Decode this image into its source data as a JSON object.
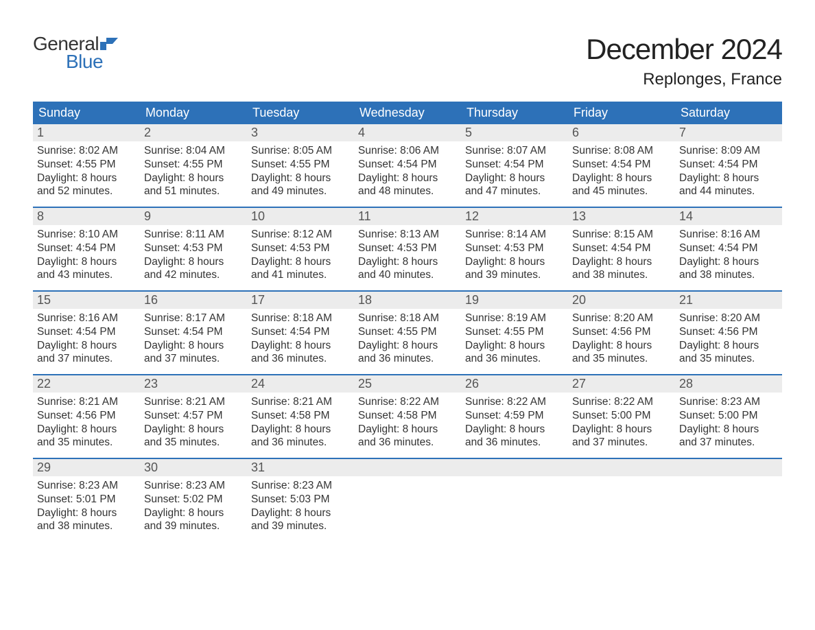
{
  "logo": {
    "general": "General",
    "blue": "Blue",
    "flag_color": "#2d71b8"
  },
  "title": "December 2024",
  "location": "Replonges, France",
  "colors": {
    "header_bg": "#2d71b8",
    "header_text": "#ffffff",
    "daynum_bg": "#ececec",
    "daynum_text": "#555555",
    "body_text": "#333333",
    "week_divider": "#2d71b8",
    "page_bg": "#ffffff"
  },
  "fonts": {
    "title_size": 42,
    "location_size": 24,
    "dayheader_size": 18,
    "daynum_size": 18,
    "body_size": 15.5
  },
  "day_headers": [
    "Sunday",
    "Monday",
    "Tuesday",
    "Wednesday",
    "Thursday",
    "Friday",
    "Saturday"
  ],
  "weeks": [
    [
      {
        "n": "1",
        "sunrise": "8:02 AM",
        "sunset": "4:55 PM",
        "dl1": "8 hours",
        "dl2": "and 52 minutes."
      },
      {
        "n": "2",
        "sunrise": "8:04 AM",
        "sunset": "4:55 PM",
        "dl1": "8 hours",
        "dl2": "and 51 minutes."
      },
      {
        "n": "3",
        "sunrise": "8:05 AM",
        "sunset": "4:55 PM",
        "dl1": "8 hours",
        "dl2": "and 49 minutes."
      },
      {
        "n": "4",
        "sunrise": "8:06 AM",
        "sunset": "4:54 PM",
        "dl1": "8 hours",
        "dl2": "and 48 minutes."
      },
      {
        "n": "5",
        "sunrise": "8:07 AM",
        "sunset": "4:54 PM",
        "dl1": "8 hours",
        "dl2": "and 47 minutes."
      },
      {
        "n": "6",
        "sunrise": "8:08 AM",
        "sunset": "4:54 PM",
        "dl1": "8 hours",
        "dl2": "and 45 minutes."
      },
      {
        "n": "7",
        "sunrise": "8:09 AM",
        "sunset": "4:54 PM",
        "dl1": "8 hours",
        "dl2": "and 44 minutes."
      }
    ],
    [
      {
        "n": "8",
        "sunrise": "8:10 AM",
        "sunset": "4:54 PM",
        "dl1": "8 hours",
        "dl2": "and 43 minutes."
      },
      {
        "n": "9",
        "sunrise": "8:11 AM",
        "sunset": "4:53 PM",
        "dl1": "8 hours",
        "dl2": "and 42 minutes."
      },
      {
        "n": "10",
        "sunrise": "8:12 AM",
        "sunset": "4:53 PM",
        "dl1": "8 hours",
        "dl2": "and 41 minutes."
      },
      {
        "n": "11",
        "sunrise": "8:13 AM",
        "sunset": "4:53 PM",
        "dl1": "8 hours",
        "dl2": "and 40 minutes."
      },
      {
        "n": "12",
        "sunrise": "8:14 AM",
        "sunset": "4:53 PM",
        "dl1": "8 hours",
        "dl2": "and 39 minutes."
      },
      {
        "n": "13",
        "sunrise": "8:15 AM",
        "sunset": "4:54 PM",
        "dl1": "8 hours",
        "dl2": "and 38 minutes."
      },
      {
        "n": "14",
        "sunrise": "8:16 AM",
        "sunset": "4:54 PM",
        "dl1": "8 hours",
        "dl2": "and 38 minutes."
      }
    ],
    [
      {
        "n": "15",
        "sunrise": "8:16 AM",
        "sunset": "4:54 PM",
        "dl1": "8 hours",
        "dl2": "and 37 minutes."
      },
      {
        "n": "16",
        "sunrise": "8:17 AM",
        "sunset": "4:54 PM",
        "dl1": "8 hours",
        "dl2": "and 37 minutes."
      },
      {
        "n": "17",
        "sunrise": "8:18 AM",
        "sunset": "4:54 PM",
        "dl1": "8 hours",
        "dl2": "and 36 minutes."
      },
      {
        "n": "18",
        "sunrise": "8:18 AM",
        "sunset": "4:55 PM",
        "dl1": "8 hours",
        "dl2": "and 36 minutes."
      },
      {
        "n": "19",
        "sunrise": "8:19 AM",
        "sunset": "4:55 PM",
        "dl1": "8 hours",
        "dl2": "and 36 minutes."
      },
      {
        "n": "20",
        "sunrise": "8:20 AM",
        "sunset": "4:56 PM",
        "dl1": "8 hours",
        "dl2": "and 35 minutes."
      },
      {
        "n": "21",
        "sunrise": "8:20 AM",
        "sunset": "4:56 PM",
        "dl1": "8 hours",
        "dl2": "and 35 minutes."
      }
    ],
    [
      {
        "n": "22",
        "sunrise": "8:21 AM",
        "sunset": "4:56 PM",
        "dl1": "8 hours",
        "dl2": "and 35 minutes."
      },
      {
        "n": "23",
        "sunrise": "8:21 AM",
        "sunset": "4:57 PM",
        "dl1": "8 hours",
        "dl2": "and 35 minutes."
      },
      {
        "n": "24",
        "sunrise": "8:21 AM",
        "sunset": "4:58 PM",
        "dl1": "8 hours",
        "dl2": "and 36 minutes."
      },
      {
        "n": "25",
        "sunrise": "8:22 AM",
        "sunset": "4:58 PM",
        "dl1": "8 hours",
        "dl2": "and 36 minutes."
      },
      {
        "n": "26",
        "sunrise": "8:22 AM",
        "sunset": "4:59 PM",
        "dl1": "8 hours",
        "dl2": "and 36 minutes."
      },
      {
        "n": "27",
        "sunrise": "8:22 AM",
        "sunset": "5:00 PM",
        "dl1": "8 hours",
        "dl2": "and 37 minutes."
      },
      {
        "n": "28",
        "sunrise": "8:23 AM",
        "sunset": "5:00 PM",
        "dl1": "8 hours",
        "dl2": "and 37 minutes."
      }
    ],
    [
      {
        "n": "29",
        "sunrise": "8:23 AM",
        "sunset": "5:01 PM",
        "dl1": "8 hours",
        "dl2": "and 38 minutes."
      },
      {
        "n": "30",
        "sunrise": "8:23 AM",
        "sunset": "5:02 PM",
        "dl1": "8 hours",
        "dl2": "and 39 minutes."
      },
      {
        "n": "31",
        "sunrise": "8:23 AM",
        "sunset": "5:03 PM",
        "dl1": "8 hours",
        "dl2": "and 39 minutes."
      },
      {
        "empty": true
      },
      {
        "empty": true
      },
      {
        "empty": true
      },
      {
        "empty": true
      }
    ]
  ],
  "labels": {
    "sunrise": "Sunrise: ",
    "sunset": "Sunset: ",
    "daylight": "Daylight: "
  }
}
